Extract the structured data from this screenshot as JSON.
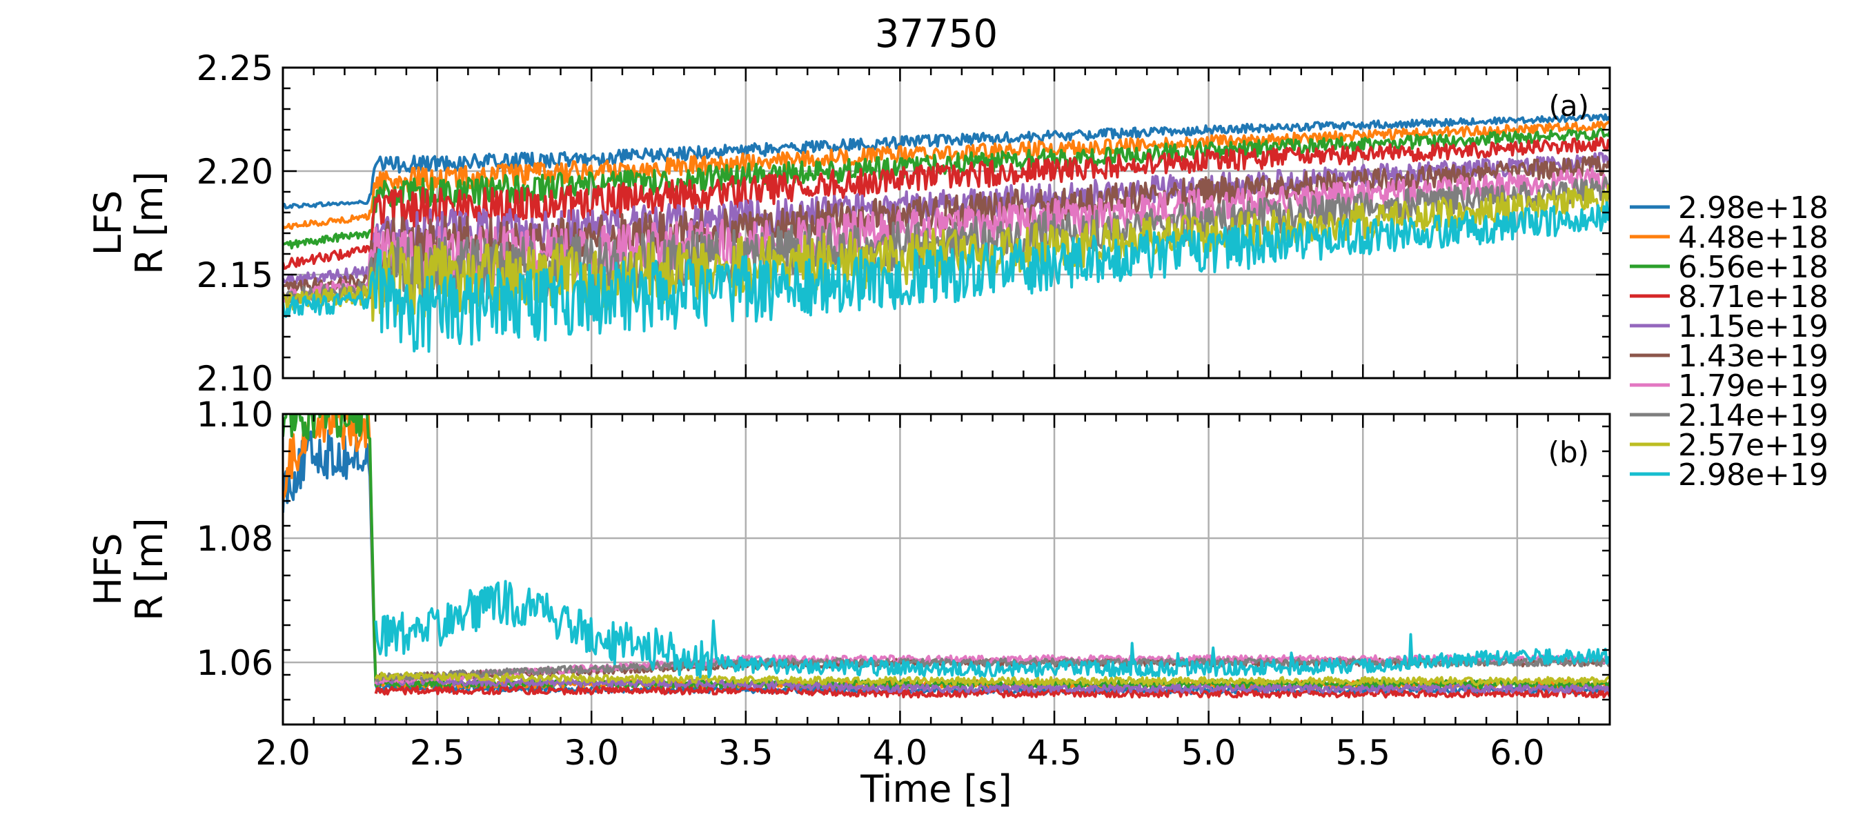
{
  "figure": {
    "title": "37750",
    "xlabel": "Time [s]"
  },
  "colors": [
    "#1f77b4",
    "#ff7f0e",
    "#2ca02c",
    "#d62728",
    "#9467bd",
    "#8c564b",
    "#e377c2",
    "#7f7f7f",
    "#bcbd22",
    "#17becf"
  ],
  "legend": [
    "2.98e+18",
    "4.48e+18",
    "6.56e+18",
    "8.71e+18",
    "1.15e+19",
    "1.43e+19",
    "1.79e+19",
    "2.14e+19",
    "2.57e+19",
    "2.98e+19"
  ],
  "chart_data": [
    {
      "type": "line",
      "panel": "(a)",
      "title": "37750",
      "xlabel": "",
      "ylabel": [
        "LFS",
        "R [m]"
      ],
      "xlim": [
        2.0,
        6.3
      ],
      "ylim": [
        2.1,
        2.25
      ],
      "xticks": [
        "2.0",
        "2.5",
        "3.0",
        "3.5",
        "4.0",
        "4.5",
        "5.0",
        "5.5",
        "6.0"
      ],
      "yticks": [
        "2.10",
        "2.15",
        "2.20",
        "2.25"
      ],
      "grid": true,
      "series": [
        {
          "name": "2.98e+18",
          "x": [
            2.0,
            2.28,
            2.3,
            3.0,
            4.0,
            5.0,
            6.3
          ],
          "y": [
            2.183,
            2.185,
            2.203,
            2.206,
            2.214,
            2.22,
            2.226
          ]
        },
        {
          "name": "4.48e+18",
          "x": [
            2.0,
            2.28,
            2.3,
            3.0,
            4.0,
            5.0,
            6.3
          ],
          "y": [
            2.173,
            2.178,
            2.195,
            2.2,
            2.208,
            2.214,
            2.222
          ]
        },
        {
          "name": "6.56e+18",
          "x": [
            2.0,
            2.28,
            2.3,
            3.0,
            4.0,
            5.0,
            6.3
          ],
          "y": [
            2.164,
            2.17,
            2.188,
            2.193,
            2.202,
            2.21,
            2.218
          ]
        },
        {
          "name": "8.71e+18",
          "x": [
            2.0,
            2.28,
            2.3,
            3.0,
            4.0,
            5.0,
            6.3
          ],
          "y": [
            2.155,
            2.162,
            2.182,
            2.185,
            2.196,
            2.205,
            2.213
          ]
        },
        {
          "name": "1.15e+19",
          "x": [
            2.0,
            2.28,
            2.3,
            3.0,
            4.0,
            5.0,
            6.3
          ],
          "y": [
            2.147,
            2.152,
            2.17,
            2.172,
            2.182,
            2.193,
            2.205
          ]
        },
        {
          "name": "1.43e+19",
          "x": [
            2.0,
            2.28,
            2.3,
            3.0,
            4.0,
            5.0,
            6.3
          ],
          "y": [
            2.143,
            2.148,
            2.165,
            2.167,
            2.178,
            2.19,
            2.203
          ]
        },
        {
          "name": "1.79e+19",
          "x": [
            2.0,
            2.28,
            2.3,
            3.0,
            4.0,
            5.0,
            6.3
          ],
          "y": [
            2.14,
            2.145,
            2.158,
            2.16,
            2.171,
            2.183,
            2.197
          ]
        },
        {
          "name": "2.14e+19",
          "x": [
            2.0,
            2.28,
            2.3,
            3.0,
            4.0,
            5.0,
            6.3
          ],
          "y": [
            2.139,
            2.143,
            2.152,
            2.155,
            2.164,
            2.176,
            2.192
          ]
        },
        {
          "name": "2.57e+19",
          "x": [
            2.0,
            2.28,
            2.3,
            3.0,
            4.0,
            5.0,
            6.3
          ],
          "y": [
            2.137,
            2.14,
            2.147,
            2.149,
            2.158,
            2.169,
            2.187
          ]
        },
        {
          "name": "2.98e+19",
          "x": [
            2.0,
            2.28,
            2.3,
            2.4,
            3.0,
            4.0,
            5.0,
            6.3
          ],
          "y": [
            2.134,
            2.137,
            2.145,
            2.13,
            2.138,
            2.148,
            2.162,
            2.178
          ]
        }
      ]
    },
    {
      "type": "line",
      "panel": "(b)",
      "xlabel": "Time [s]",
      "ylabel": [
        "HFS",
        "R [m]"
      ],
      "xlim": [
        2.0,
        6.3
      ],
      "ylim": [
        1.05,
        1.1
      ],
      "xticks": [
        "2.0",
        "2.5",
        "3.0",
        "3.5",
        "4.0",
        "4.5",
        "5.0",
        "5.5",
        "6.0"
      ],
      "yticks": [
        "1.06",
        "1.08",
        "1.10"
      ],
      "grid": true,
      "series": [
        {
          "name": "2.98e+18",
          "x": [
            2.0,
            2.1,
            2.2,
            2.28,
            2.3,
            4.0,
            6.3
          ],
          "y": [
            1.088,
            1.094,
            1.093,
            1.093,
            1.056,
            1.0555,
            1.0555
          ]
        },
        {
          "name": "4.48e+18",
          "x": [
            2.0,
            2.1,
            2.2,
            2.28,
            2.3,
            4.0,
            6.3
          ],
          "y": [
            1.09,
            1.1,
            1.098,
            1.098,
            1.0565,
            1.0565,
            1.0565
          ]
        },
        {
          "name": "6.56e+18",
          "x": [
            2.0,
            2.28,
            2.3,
            4.0,
            6.3
          ],
          "y": [
            1.1,
            1.1,
            1.0565,
            1.0565,
            1.0565
          ]
        },
        {
          "name": "8.71e+18",
          "x": [
            2.3,
            3.5,
            4.0,
            6.3
          ],
          "y": [
            1.0555,
            1.0555,
            1.055,
            1.055
          ]
        },
        {
          "name": "1.15e+19",
          "x": [
            2.3,
            3.5,
            4.0,
            6.3
          ],
          "y": [
            1.057,
            1.0565,
            1.0558,
            1.0558
          ]
        },
        {
          "name": "1.43e+19",
          "x": [
            2.3,
            3.5,
            4.0,
            6.3
          ],
          "y": [
            1.0575,
            1.0595,
            1.06,
            1.06
          ]
        },
        {
          "name": "1.79e+19",
          "x": [
            2.3,
            3.5,
            4.0,
            6.3
          ],
          "y": [
            1.057,
            1.0605,
            1.0605,
            1.0605
          ]
        },
        {
          "name": "2.14e+19",
          "x": [
            2.3,
            3.5,
            4.0,
            6.3
          ],
          "y": [
            1.0575,
            1.06,
            1.06,
            1.06
          ]
        },
        {
          "name": "2.57e+19",
          "x": [
            2.3,
            3.5,
            4.0,
            6.3
          ],
          "y": [
            1.0578,
            1.0572,
            1.057,
            1.057
          ]
        },
        {
          "name": "2.98e+19",
          "x": [
            2.3,
            2.5,
            2.7,
            2.85,
            3.0,
            3.3,
            3.5,
            4.0,
            4.63,
            5.0,
            5.5,
            6.0,
            6.3
          ],
          "y": [
            1.064,
            1.066,
            1.07,
            1.068,
            1.064,
            1.061,
            1.0595,
            1.059,
            1.059,
            1.059,
            1.0595,
            1.061,
            1.061
          ]
        }
      ]
    }
  ]
}
